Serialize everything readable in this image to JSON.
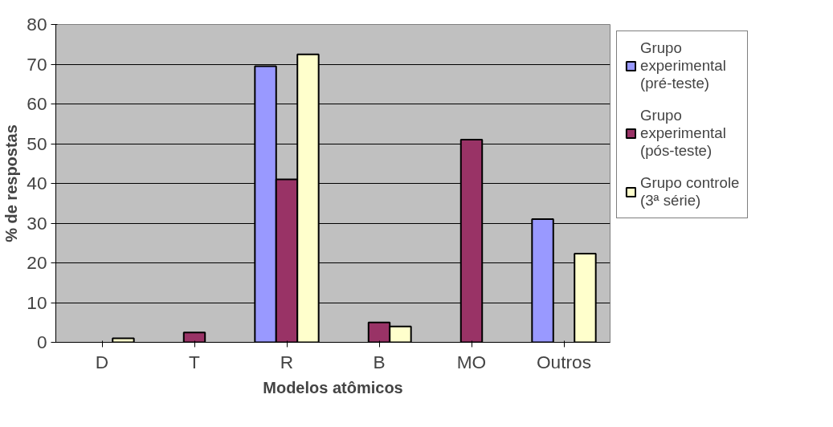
{
  "chart_data": {
    "type": "bar",
    "xlabel": "Modelos atômicos",
    "ylabel": "% de respostas",
    "categories": [
      "D",
      "T",
      "R",
      "B",
      "MO",
      "Outros"
    ],
    "series": [
      {
        "name": "Grupo experimental (pré-teste)",
        "color": "#9999ff",
        "values": [
          null,
          null,
          69.5,
          null,
          null,
          31
        ]
      },
      {
        "name": "Grupo experimental (pós-teste)",
        "color": "#993366",
        "values": [
          null,
          2.5,
          41,
          5,
          51,
          null
        ]
      },
      {
        "name": "Grupo controle (3ª série)",
        "color": "#ffffcc",
        "values": [
          1,
          null,
          72.5,
          4,
          null,
          22.3
        ]
      }
    ],
    "ylim": [
      0,
      80
    ],
    "yticks": [
      0,
      10,
      20,
      30,
      40,
      50,
      60,
      70,
      80
    ],
    "grid": "y",
    "legend": "right"
  }
}
